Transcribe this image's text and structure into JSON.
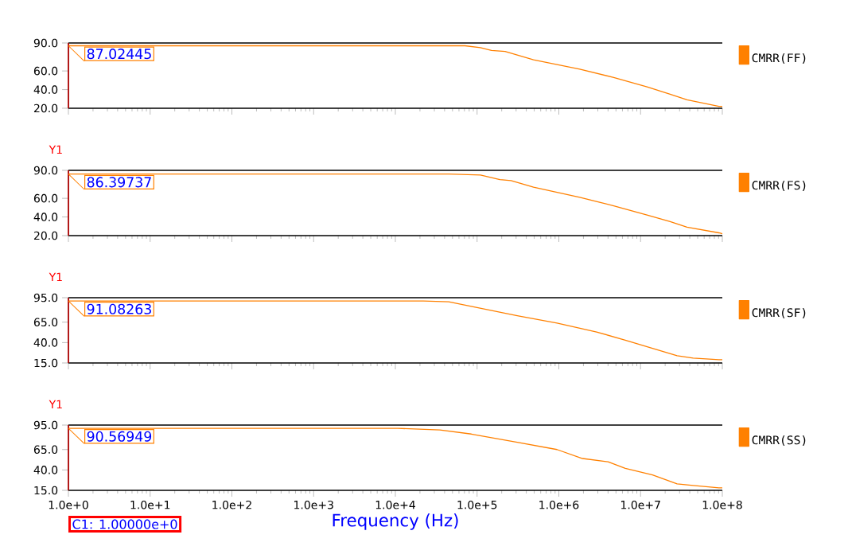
{
  "chart_data": [
    {
      "type": "line",
      "log": "x",
      "legend": "right",
      "tick_labels": "y",
      "x": [
        1,
        71000,
        110000,
        150000,
        220000,
        490000,
        1800000,
        4700000,
        12000000,
        23000000,
        37000000,
        91000000,
        100000000
      ],
      "series": [
        {
          "name": "CMRR(FF)",
          "color": "#ff8000",
          "values": [
            87,
            87,
            85,
            82,
            81,
            72,
            62,
            53,
            43,
            35,
            29,
            22,
            22
          ]
        }
      ],
      "xlim": [
        1,
        100000000
      ],
      "xticks": [
        1,
        10,
        100,
        1000,
        10000,
        100000,
        1000000,
        10000000,
        100000000
      ],
      "ylim": [
        20,
        90
      ],
      "yticks": [
        {
          "value": 20,
          "label": "20.0"
        },
        {
          "value": 40,
          "label": "40.0"
        },
        {
          "value": 60,
          "label": "60.0"
        },
        {
          "value": 90,
          "label": "90.0"
        }
      ],
      "annotations": [
        "87.02445"
      ],
      "ref_lines": [
        {
          "axis": "x",
          "value": 1,
          "color": "#ff0000"
        }
      ]
    },
    {
      "type": "line",
      "log": "x",
      "legend": "right",
      "tick_labels": "y",
      "ylabel": "Y1",
      "x": [
        1,
        45000,
        110000,
        190000,
        260000,
        490000,
        1800000,
        4700000,
        12000000,
        23000000,
        37000000,
        91000000,
        100000000
      ],
      "series": [
        {
          "name": "CMRR(FS)",
          "color": "#ff8000",
          "values": [
            86,
            86,
            85,
            80,
            79,
            72,
            61,
            52,
            42,
            35,
            29,
            23,
            22
          ]
        }
      ],
      "xlim": [
        1,
        100000000
      ],
      "xticks": [
        1,
        10,
        100,
        1000,
        10000,
        100000,
        1000000,
        10000000,
        100000000
      ],
      "ylim": [
        20,
        90
      ],
      "yticks": [
        {
          "value": 20,
          "label": "20.0"
        },
        {
          "value": 40,
          "label": "40.0"
        },
        {
          "value": 60,
          "label": "60.0"
        },
        {
          "value": 90,
          "label": "90.0"
        }
      ],
      "annotations": [
        "86.39737"
      ],
      "ref_lines": [
        {
          "axis": "x",
          "value": 1,
          "color": "#ff0000"
        }
      ]
    },
    {
      "type": "line",
      "log": "x",
      "legend": "right",
      "tick_labels": "y",
      "ylabel": "Y1",
      "x": [
        1,
        22000,
        45000,
        100000,
        310000,
        950000,
        2900000,
        6500000,
        14000000,
        28000000,
        44000000,
        91000000,
        100000000
      ],
      "series": [
        {
          "name": "CMRR(SF)",
          "color": "#ff8000",
          "values": [
            91,
            91,
            90,
            83,
            73,
            64,
            53,
            43,
            33,
            24,
            21,
            19,
            19
          ]
        }
      ],
      "xlim": [
        1,
        100000000
      ],
      "xticks": [
        1,
        10,
        100,
        1000,
        10000,
        100000,
        1000000,
        10000000,
        100000000
      ],
      "ylim": [
        15,
        95
      ],
      "yticks": [
        {
          "value": 15,
          "label": "15.0"
        },
        {
          "value": 40,
          "label": "40.0"
        },
        {
          "value": 65,
          "label": "65.0"
        },
        {
          "value": 95,
          "label": "95.0"
        }
      ],
      "annotations": [
        "91.08263"
      ],
      "ref_lines": [
        {
          "axis": "x",
          "value": 1,
          "color": "#ff0000"
        }
      ]
    },
    {
      "type": "line",
      "log": "x",
      "legend": "right",
      "ylabel": "Y1",
      "xlabel": "Frequency (Hz)",
      "x": [
        1,
        10700,
        35000,
        85000,
        310000,
        950000,
        1950000,
        4000000,
        6500000,
        14000000,
        28000000,
        44000000,
        91000000,
        100000000
      ],
      "series": [
        {
          "name": "CMRR(SS)",
          "color": "#ff8000",
          "values": [
            91,
            91,
            89,
            84,
            74,
            65,
            54,
            50,
            42,
            34,
            23,
            21,
            18,
            18
          ]
        }
      ],
      "xlim": [
        1,
        100000000
      ],
      "xticks": [
        {
          "value": 1,
          "label": "1.0e+0"
        },
        {
          "value": 10,
          "label": "1.0e+1"
        },
        {
          "value": 100,
          "label": "1.0e+2"
        },
        {
          "value": 1000,
          "label": "1.0e+3"
        },
        {
          "value": 10000,
          "label": "1.0e+4"
        },
        {
          "value": 100000,
          "label": "1.0e+5"
        },
        {
          "value": 1000000,
          "label": "1.0e+6"
        },
        {
          "value": 10000000,
          "label": "1.0e+7"
        },
        {
          "value": 100000000,
          "label": "1.0e+8"
        }
      ],
      "ylim": [
        15,
        95
      ],
      "yticks": [
        {
          "value": 15,
          "label": "15.0"
        },
        {
          "value": 40,
          "label": "40.0"
        },
        {
          "value": 65,
          "label": "65.0"
        },
        {
          "value": 95,
          "label": "95.0"
        }
      ],
      "annotations": [
        "90.56949"
      ],
      "ref_lines": [
        {
          "axis": "x",
          "value": 1,
          "color": "#ff0000",
          "label": "C1: 1.00000e+0"
        }
      ]
    }
  ]
}
